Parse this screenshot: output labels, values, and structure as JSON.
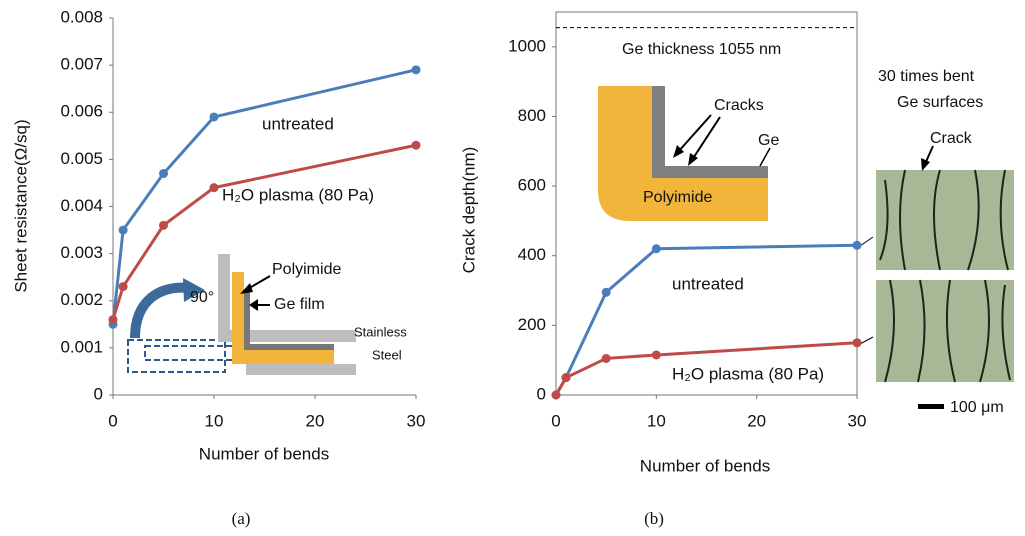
{
  "chart_data": [
    {
      "type": "line",
      "caption": "(a)",
      "xlabel": "Number of bends",
      "ylabel": "Sheet resistance(Ω/sq)",
      "x": [
        0,
        1,
        5,
        10,
        30
      ],
      "xlim": [
        0,
        30
      ],
      "ylim": [
        0,
        0.008
      ],
      "xticks": [
        0,
        10,
        20,
        30
      ],
      "yticks": [
        0,
        0.001,
        0.002,
        0.003,
        0.004,
        0.005,
        0.006,
        0.007,
        0.008
      ],
      "series": [
        {
          "name": "untreated",
          "color": "#4a7ebb",
          "values": [
            0.0015,
            0.0035,
            0.0047,
            0.0059,
            0.0069
          ]
        },
        {
          "name": "H₂O plasma (80 Pa)",
          "color": "#be4b48",
          "values": [
            0.0016,
            0.0023,
            0.0036,
            0.0044,
            0.0053
          ]
        }
      ],
      "annotations": [
        "Polyimide",
        "Ge film",
        "90°",
        "Stainless",
        "Steel"
      ]
    },
    {
      "type": "line",
      "caption": "(b)",
      "xlabel": "Number of bends",
      "ylabel": "Crack depth(nm)",
      "x": [
        0,
        1,
        5,
        10,
        30
      ],
      "xlim": [
        0,
        30
      ],
      "ylim": [
        0,
        1100
      ],
      "xticks": [
        0,
        10,
        20,
        30
      ],
      "yticks": [
        0,
        200,
        400,
        600,
        800,
        1000
      ],
      "reference_line": 1055,
      "series": [
        {
          "name": "untreated",
          "color": "#4a7ebb",
          "values": [
            0,
            50,
            295,
            420,
            430
          ]
        },
        {
          "name": "H₂O plasma (80 Pa)",
          "color": "#be4b48",
          "values": [
            0,
            50,
            105,
            115,
            150
          ]
        }
      ],
      "annotations": [
        "Ge thickness 1055 nm",
        "Cracks",
        "Ge",
        "Polyimide",
        "30 times bent",
        "Ge surfaces",
        "Crack",
        "100 μm"
      ]
    }
  ]
}
